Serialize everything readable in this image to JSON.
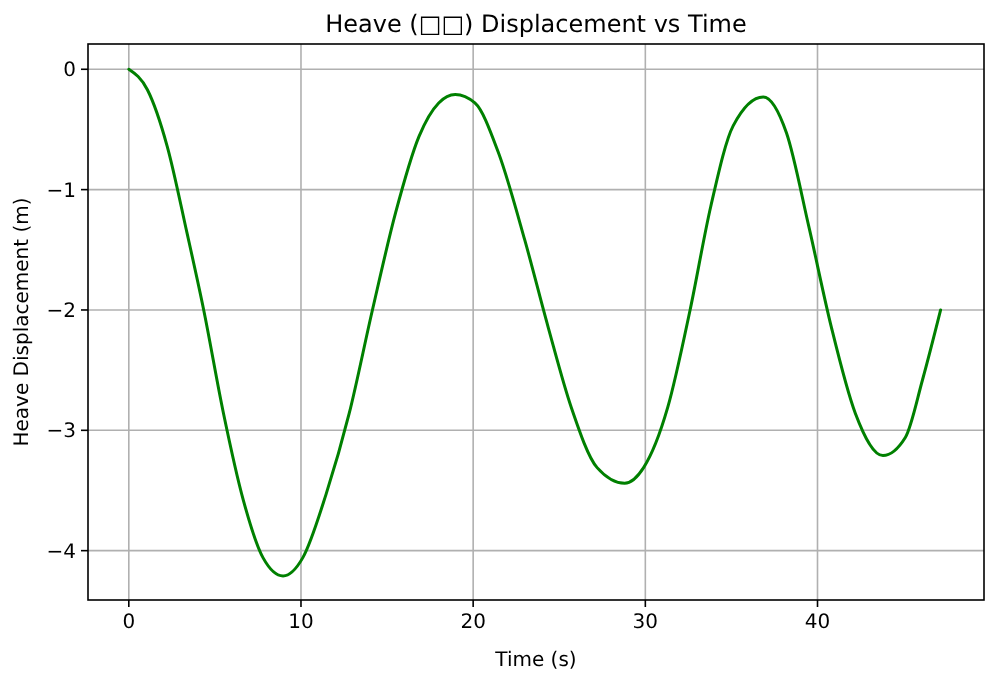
{
  "chart_data": {
    "type": "line",
    "title": "Heave (□□) Displacement vs Time",
    "xlabel": "Time (s)",
    "ylabel": "Heave Displacement (m)",
    "xlim": [
      -2.37,
      49.67
    ],
    "xticks": [
      0,
      10,
      20,
      30,
      40
    ],
    "ylim": [
      -4.41,
      0.21
    ],
    "yticks": [
      0,
      -1,
      -2,
      -3,
      -4
    ],
    "grid": true,
    "marker": "none",
    "line_style": "solid",
    "series": [
      {
        "color": "#008000",
        "x": [
          0,
          1.08,
          2.23,
          3.38,
          4.35,
          5.5,
          6.65,
          7.8,
          8.96,
          10.1,
          11.46,
          12.8,
          14.15,
          15.5,
          16.85,
          18.0,
          18.96,
          20.1,
          21.46,
          23.0,
          24.35,
          25.7,
          27.2,
          28.8,
          29.9,
          31.3,
          32.6,
          33.8,
          35.1,
          36.85,
          38.2,
          39.5,
          40.8,
          42.2,
          43.8,
          45.1,
          46.1,
          47.15
        ],
        "values": [
          0,
          -0.17,
          -0.64,
          -1.36,
          -2.0,
          -2.86,
          -3.58,
          -4.06,
          -4.21,
          -4.06,
          -3.53,
          -2.86,
          -2.0,
          -1.19,
          -0.56,
          -0.28,
          -0.21,
          -0.28,
          -0.69,
          -1.42,
          -2.14,
          -2.81,
          -3.31,
          -3.44,
          -3.31,
          -2.81,
          -2.0,
          -1.14,
          -0.47,
          -0.23,
          -0.53,
          -1.31,
          -2.14,
          -2.86,
          -3.21,
          -3.06,
          -2.58,
          -2.0
        ]
      }
    ]
  }
}
